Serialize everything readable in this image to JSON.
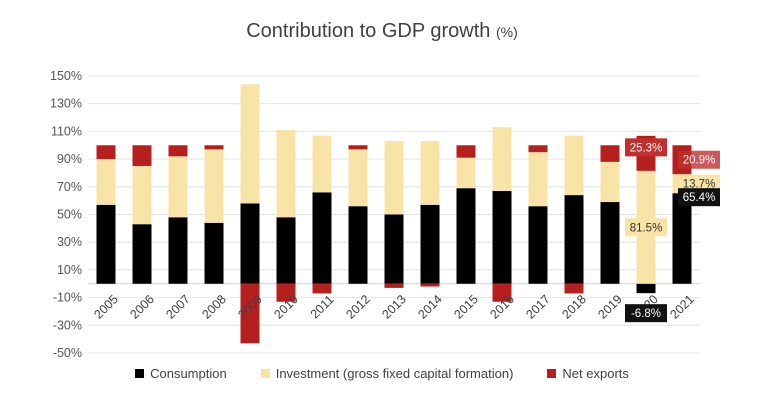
{
  "chart_data": {
    "type": "bar",
    "stacked": true,
    "title": "Contribution to GDP growth",
    "title_unit": "(%)",
    "ylim": [
      -50,
      150
    ],
    "yticks": [
      -50,
      -30,
      -10,
      10,
      30,
      50,
      70,
      90,
      110,
      130,
      150
    ],
    "ytick_labels": [
      "-50%",
      "-30%",
      "-10%",
      "10%",
      "30%",
      "50%",
      "70%",
      "90%",
      "110%",
      "130%",
      "150%"
    ],
    "categories": [
      "2005",
      "2006",
      "2007",
      "2008",
      "2009",
      "2010",
      "2011",
      "2012",
      "2013",
      "2014",
      "2015",
      "2016",
      "2017",
      "2018",
      "2019",
      "2020",
      "2021"
    ],
    "series": [
      {
        "name": "Consumption",
        "color": "#000000",
        "values": [
          57,
          43,
          48,
          44,
          58,
          48,
          66,
          56,
          50,
          57,
          69,
          67,
          56,
          64,
          59,
          -6.8,
          65.4
        ]
      },
      {
        "name": "Investment (gross fixed capital formation)",
        "color": "#f8e4a6",
        "values": [
          33,
          42,
          44,
          53,
          86,
          63,
          41,
          41,
          53,
          46,
          22,
          46,
          39,
          43,
          29,
          81.5,
          13.7
        ]
      },
      {
        "name": "Net exports",
        "color": "#b5201e",
        "values": [
          10,
          15,
          8,
          3,
          -43,
          -13,
          -7,
          3,
          -3,
          -2,
          9,
          -13,
          5,
          -7,
          12,
          25.3,
          20.9
        ]
      }
    ],
    "annotations": [
      {
        "text": "25.3%",
        "category": "2020",
        "series": "Net exports"
      },
      {
        "text": "81.5%",
        "category": "2020",
        "series": "Investment (gross fixed capital formation)"
      },
      {
        "text": "-6.8%",
        "category": "2020",
        "series": "Consumption"
      },
      {
        "text": "20.9%",
        "category": "2021",
        "series": "Net exports"
      },
      {
        "text": "13.7%",
        "category": "2021",
        "series": "Investment (gross fixed capital formation)"
      },
      {
        "text": "65.4%",
        "category": "2021",
        "series": "Consumption"
      }
    ],
    "legend_position": "bottom"
  }
}
